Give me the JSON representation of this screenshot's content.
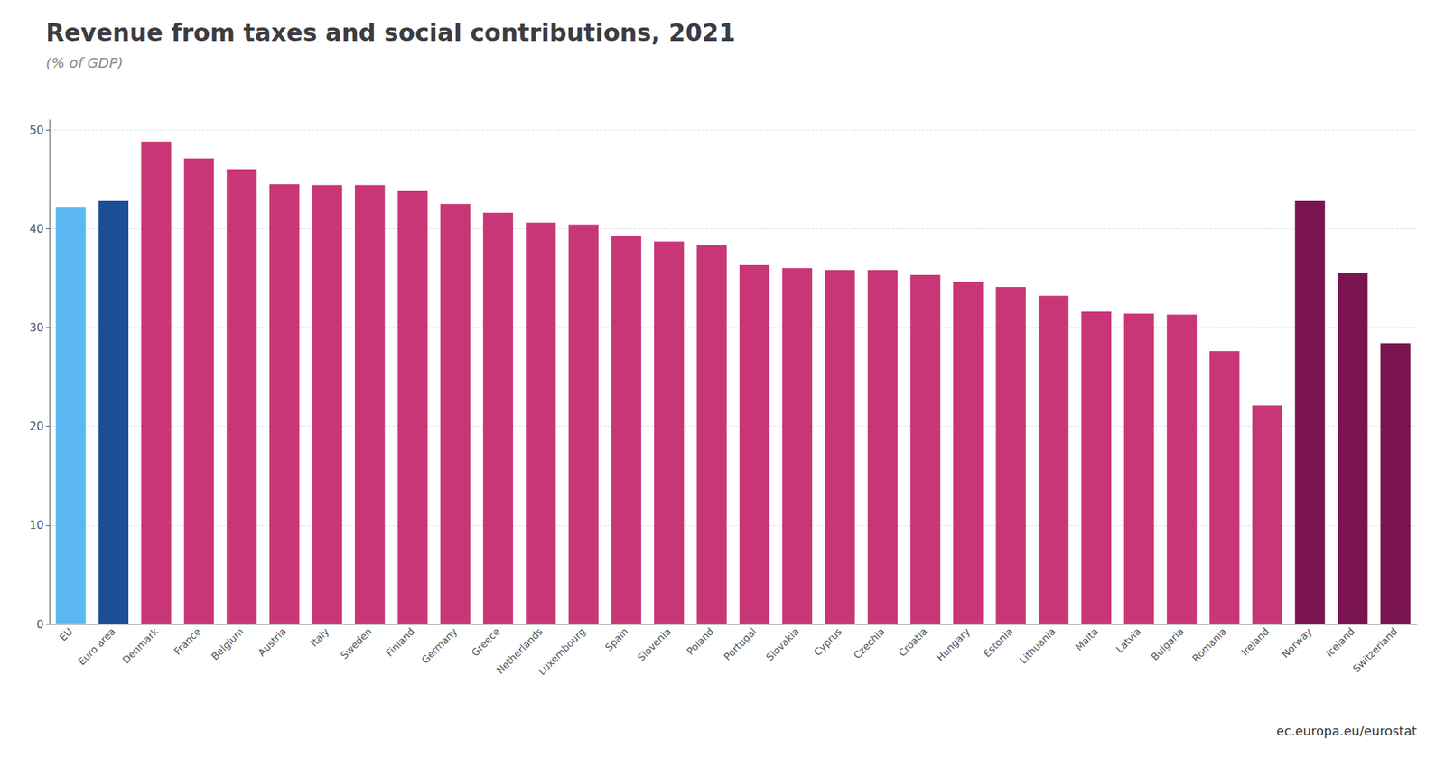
{
  "chart_data": {
    "type": "bar",
    "title": "Revenue from taxes and social contributions, 2021",
    "subtitle": "(% of GDP)",
    "categories": [
      "EU",
      "Euro area",
      "Denmark",
      "France",
      "Belgium",
      "Austria",
      "Italy",
      "Sweden",
      "Finland",
      "Germany",
      "Greece",
      "Netherlands",
      "Luxembourg",
      "Spain",
      "Slovenia",
      "Poland",
      "Portugal",
      "Slovakia",
      "Cyprus",
      "Czechia",
      "Croatia",
      "Hungary",
      "Estonia",
      "Lithuania",
      "Malta",
      "Latvia",
      "Bulgaria",
      "Romania",
      "Ireland",
      "Norway",
      "Iceland",
      "Switzerland"
    ],
    "values": [
      42.2,
      42.8,
      48.8,
      47.1,
      46.0,
      44.5,
      44.4,
      44.4,
      43.8,
      42.5,
      41.6,
      40.6,
      40.4,
      39.3,
      38.7,
      38.3,
      36.3,
      36.0,
      35.8,
      35.8,
      35.3,
      34.6,
      34.1,
      33.2,
      31.6,
      31.4,
      31.3,
      27.6,
      22.1,
      42.8,
      35.5,
      28.4
    ],
    "colors": [
      "#5bb8f0",
      "#1a4f96",
      "#c93677",
      "#c93677",
      "#c93677",
      "#c93677",
      "#c93677",
      "#c93677",
      "#c93677",
      "#c93677",
      "#c93677",
      "#c93677",
      "#c93677",
      "#c93677",
      "#c93677",
      "#c93677",
      "#c93677",
      "#c93677",
      "#c93677",
      "#c93677",
      "#c93677",
      "#c93677",
      "#c93677",
      "#c93677",
      "#c93677",
      "#c93677",
      "#c93677",
      "#c93677",
      "#c93677",
      "#7a1550",
      "#7a1550",
      "#7a1550"
    ],
    "ylim": [
      0,
      51
    ],
    "yticks": [
      0,
      10,
      20,
      30,
      40,
      50
    ],
    "grid": true,
    "annotations": [
      "ec.europa.eu/eurostat"
    ]
  }
}
